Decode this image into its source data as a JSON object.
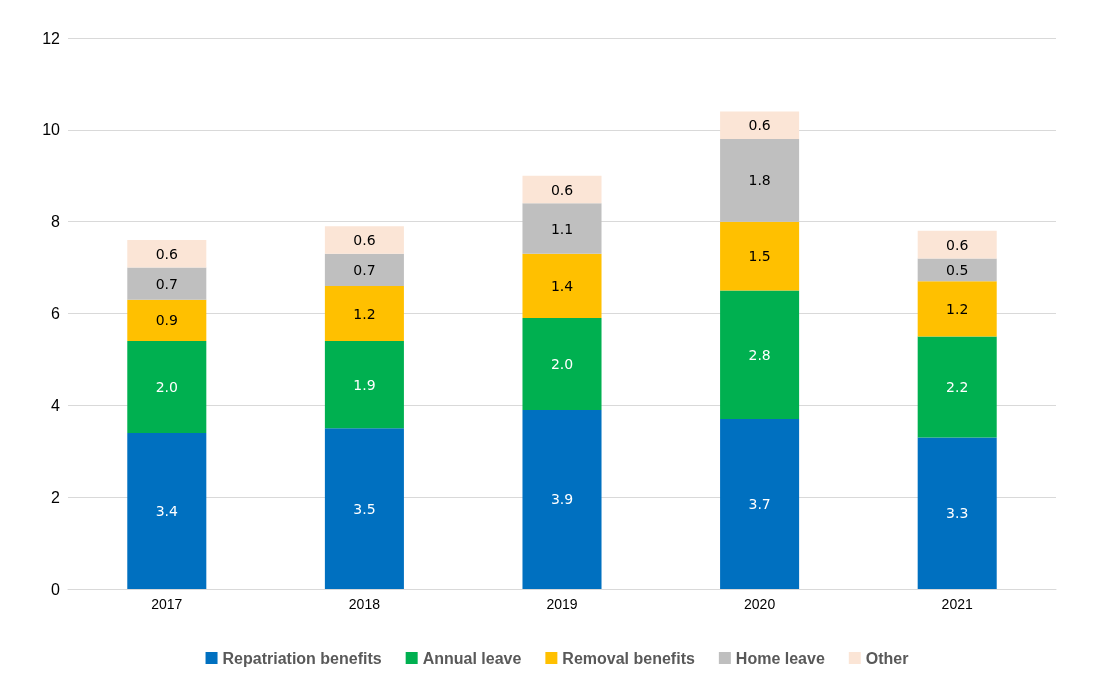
{
  "chart_data": {
    "type": "bar",
    "stacked": true,
    "categories": [
      "2017",
      "2018",
      "2019",
      "2020",
      "2021"
    ],
    "series": [
      {
        "name": "Repatriation benefits",
        "color": "#0070c0",
        "values": [
          3.4,
          3.5,
          3.9,
          3.7,
          3.3
        ],
        "value_labels": [
          "3.4",
          "3.5",
          "3.9",
          "3.7",
          "3.3"
        ]
      },
      {
        "name": "Annual leave",
        "color": "#00b050",
        "values": [
          2.0,
          1.9,
          2.0,
          2.8,
          2.2
        ],
        "value_labels": [
          "2.0",
          "1.9",
          "2.0",
          "2.8",
          "2.2"
        ]
      },
      {
        "name": "Removal benefits",
        "color": "#ffc000",
        "values": [
          0.9,
          1.2,
          1.4,
          1.5,
          1.2
        ],
        "value_labels": [
          "0.9",
          "1.2",
          "1.4",
          "1.5",
          "1.2"
        ]
      },
      {
        "name": "Home leave",
        "color": "#bfbfbf",
        "values": [
          0.7,
          0.7,
          1.1,
          1.8,
          0.5
        ],
        "value_labels": [
          "0.7",
          "0.7",
          "1.1",
          "1.8",
          "0.5"
        ]
      },
      {
        "name": "Other",
        "color": "#fbe5d6",
        "values": [
          0.6,
          0.6,
          0.6,
          0.6,
          0.6
        ],
        "value_labels": [
          "0.6",
          "0.6",
          "0.6",
          "0.6",
          "0.6"
        ]
      }
    ],
    "ylim": [
      0,
      12
    ],
    "yticks": [
      0,
      2,
      4,
      6,
      8,
      10,
      12
    ],
    "grid": "y",
    "legend": "bottom"
  }
}
